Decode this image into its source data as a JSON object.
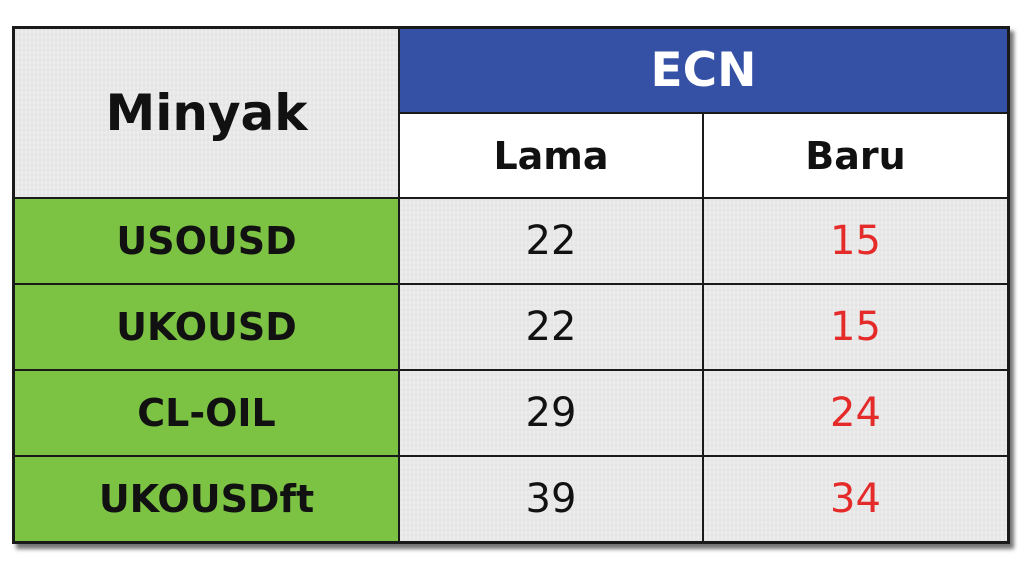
{
  "table": {
    "corner_label": "Minyak",
    "group_header": "ECN",
    "subheaders": [
      "Lama",
      "Baru"
    ],
    "rows": [
      {
        "instrument": "USOUSD",
        "lama": "22",
        "baru": "15"
      },
      {
        "instrument": "UKOUSD",
        "lama": "22",
        "baru": "15"
      },
      {
        "instrument": "CL-OIL",
        "lama": "29",
        "baru": "24"
      },
      {
        "instrument": "UKOUSDft",
        "lama": "39",
        "baru": "34"
      }
    ]
  },
  "colors": {
    "header_blue": "#3551a6",
    "instrument_green": "#7cc243",
    "old_value": "#111111",
    "new_value": "#e52a2a"
  }
}
